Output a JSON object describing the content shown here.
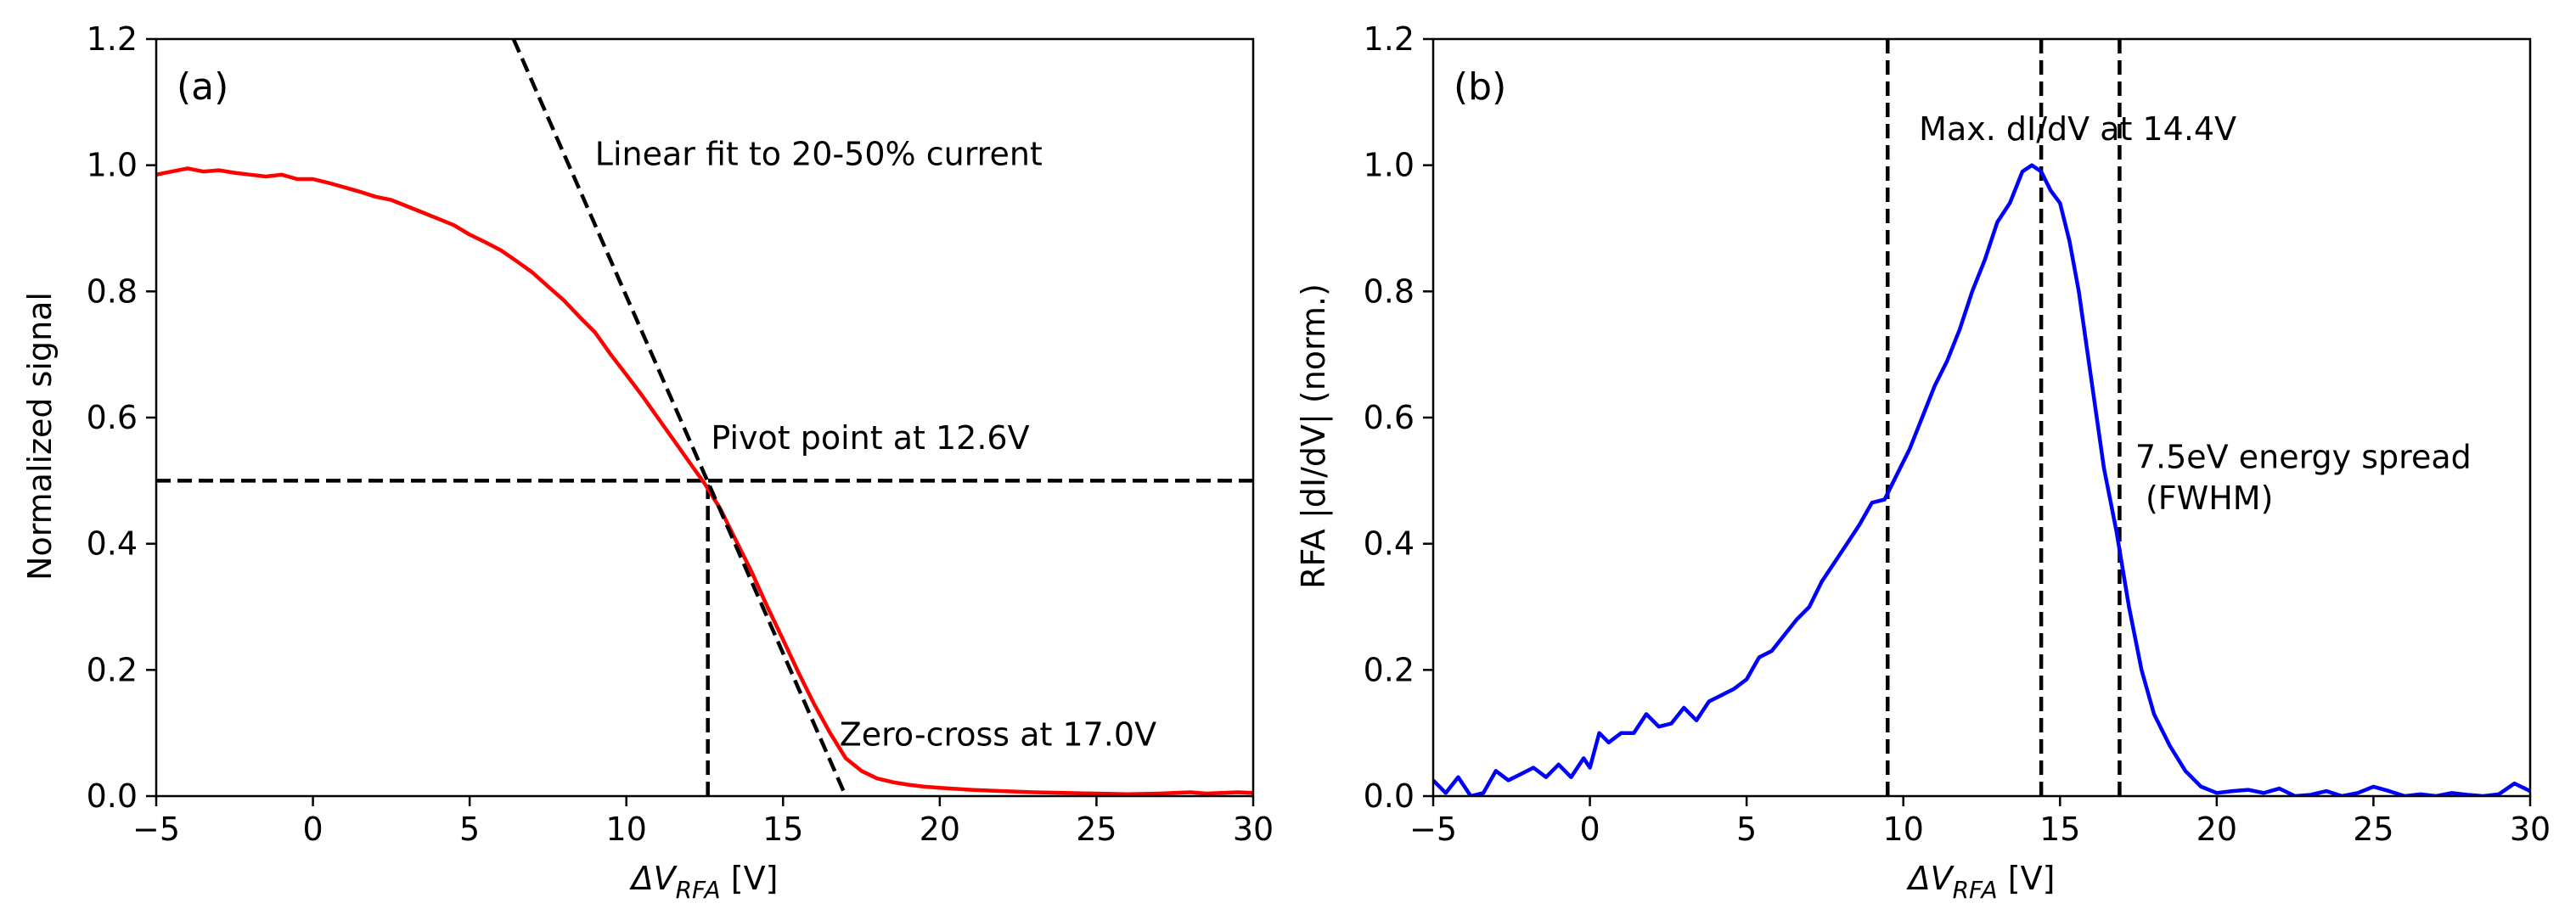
{
  "chart_data": [
    {
      "id": "a",
      "type": "line",
      "panel_label": "(a)",
      "xlabel_main": "ΔV",
      "xlabel_sub": "RFA",
      "xlabel_unit": "[V]",
      "ylabel": "Normalized signal",
      "xlim": [
        -5,
        30
      ],
      "ylim": [
        0,
        1.2
      ],
      "xticks": [
        -5,
        0,
        5,
        10,
        15,
        20,
        25,
        30
      ],
      "xtick_labels": [
        "−5",
        "0",
        "5",
        "10",
        "15",
        "20",
        "25",
        "30"
      ],
      "yticks": [
        0,
        0.2,
        0.4,
        0.6,
        0.8,
        1.0,
        1.2
      ],
      "ytick_labels": [
        "0.0",
        "0.2",
        "0.4",
        "0.6",
        "0.8",
        "1.0",
        "1.2"
      ],
      "series": [
        {
          "name": "Normalized signal",
          "color": "#ff0000",
          "x": [
            -5,
            -4.5,
            -4,
            -3.5,
            -3,
            -2.5,
            -2,
            -1.5,
            -1,
            -0.5,
            0,
            0.5,
            1,
            1.5,
            2,
            2.5,
            3,
            3.5,
            4,
            4.5,
            5,
            5.5,
            6,
            6.5,
            7,
            7.5,
            8,
            8.5,
            9,
            9.5,
            10,
            10.5,
            11,
            11.5,
            12,
            12.5,
            13,
            13.5,
            14,
            14.5,
            15,
            15.5,
            16,
            16.5,
            17,
            17.5,
            18,
            18.5,
            19,
            19.5,
            20,
            21,
            22,
            23,
            24,
            25,
            26,
            27,
            28,
            28.5,
            29,
            29.5,
            30
          ],
          "y": [
            0.985,
            0.99,
            0.995,
            0.99,
            0.992,
            0.988,
            0.985,
            0.982,
            0.985,
            0.978,
            0.978,
            0.972,
            0.965,
            0.958,
            0.95,
            0.945,
            0.935,
            0.925,
            0.915,
            0.905,
            0.89,
            0.878,
            0.865,
            0.848,
            0.83,
            0.808,
            0.786,
            0.76,
            0.735,
            0.7,
            0.668,
            0.635,
            0.6,
            0.565,
            0.53,
            0.495,
            0.455,
            0.405,
            0.355,
            0.3,
            0.248,
            0.195,
            0.145,
            0.1,
            0.06,
            0.04,
            0.028,
            0.022,
            0.018,
            0.015,
            0.013,
            0.01,
            0.008,
            0.006,
            0.005,
            0.004,
            0.003,
            0.004,
            0.006,
            0.004,
            0.005,
            0.006,
            0.005
          ]
        },
        {
          "name": "Linear fit",
          "color": "#000000",
          "style": "dashed",
          "x": [
            6.4,
            17.0
          ],
          "y": [
            1.2,
            0.0
          ]
        }
      ],
      "reference_lines": [
        {
          "orientation": "horizontal",
          "y": 0.5,
          "x_from": -5,
          "x_to": 30
        },
        {
          "orientation": "vertical",
          "x": 12.6,
          "y_from": 0,
          "y_to": 0.5
        }
      ],
      "annotations": [
        {
          "text": "Linear fit to 20-50% current",
          "x": 9.0,
          "y": 1.0
        },
        {
          "text": "Pivot point at 12.6V",
          "x": 12.7,
          "y": 0.55
        },
        {
          "text": "Zero-cross at 17.0V",
          "x": 16.8,
          "y": 0.08
        }
      ]
    },
    {
      "id": "b",
      "type": "line",
      "panel_label": "(b)",
      "xlabel_main": "ΔV",
      "xlabel_sub": "RFA",
      "xlabel_unit": "[V]",
      "ylabel": "RFA |dI/dV| (norm.)",
      "xlim": [
        -5,
        30
      ],
      "ylim": [
        0,
        1.2
      ],
      "xticks": [
        -5,
        0,
        5,
        10,
        15,
        20,
        25,
        30
      ],
      "xtick_labels": [
        "−5",
        "0",
        "5",
        "10",
        "15",
        "20",
        "25",
        "30"
      ],
      "yticks": [
        0,
        0.2,
        0.4,
        0.6,
        0.8,
        1.0,
        1.2
      ],
      "ytick_labels": [
        "0.0",
        "0.2",
        "0.4",
        "0.6",
        "0.8",
        "1.0",
        "1.2"
      ],
      "series": [
        {
          "name": "RFA |dI/dV|",
          "color": "#0000ff",
          "x": [
            -5,
            -4.6,
            -4.2,
            -3.8,
            -3.4,
            -3,
            -2.6,
            -2.2,
            -1.8,
            -1.4,
            -1,
            -0.6,
            -0.2,
            0,
            0.3,
            0.6,
            1,
            1.4,
            1.8,
            2.2,
            2.6,
            3,
            3.4,
            3.8,
            4.2,
            4.6,
            5,
            5.4,
            5.8,
            6.2,
            6.6,
            7,
            7.4,
            7.8,
            8.2,
            8.6,
            9,
            9.4,
            9.8,
            10.2,
            10.6,
            11,
            11.4,
            11.8,
            12.2,
            12.6,
            13,
            13.4,
            13.8,
            14.1,
            14.4,
            14.7,
            15.0,
            15.3,
            15.6,
            16.0,
            16.4,
            16.8,
            17.2,
            17.6,
            18.0,
            18.5,
            19.0,
            19.5,
            20.0,
            20.5,
            21,
            21.5,
            22,
            22.5,
            23,
            23.5,
            24,
            24.5,
            25,
            25.5,
            26,
            26.5,
            27,
            27.5,
            28,
            28.5,
            29,
            29.5,
            30
          ],
          "y": [
            0.025,
            0.005,
            0.03,
            0.0,
            0.005,
            0.04,
            0.025,
            0.035,
            0.045,
            0.03,
            0.05,
            0.03,
            0.06,
            0.045,
            0.1,
            0.085,
            0.1,
            0.1,
            0.13,
            0.11,
            0.115,
            0.14,
            0.12,
            0.15,
            0.16,
            0.17,
            0.185,
            0.22,
            0.23,
            0.255,
            0.28,
            0.3,
            0.34,
            0.37,
            0.4,
            0.43,
            0.465,
            0.47,
            0.51,
            0.55,
            0.6,
            0.65,
            0.69,
            0.74,
            0.8,
            0.85,
            0.91,
            0.94,
            0.99,
            1.0,
            0.99,
            0.96,
            0.94,
            0.88,
            0.8,
            0.66,
            0.52,
            0.42,
            0.3,
            0.2,
            0.13,
            0.08,
            0.04,
            0.015,
            0.005,
            0.008,
            0.01,
            0.005,
            0.012,
            0.0,
            0.002,
            0.008,
            0.0,
            0.005,
            0.015,
            0.008,
            0.0,
            0.003,
            0.0,
            0.005,
            0.002,
            0.0,
            0.003,
            0.02,
            0.008
          ]
        }
      ],
      "reference_lines": [
        {
          "orientation": "vertical",
          "x": 9.5,
          "y_from": 0,
          "y_to": 1.2
        },
        {
          "orientation": "vertical",
          "x": 14.4,
          "y_from": 0,
          "y_to": 1.2
        },
        {
          "orientation": "vertical",
          "x": 16.9,
          "y_from": 0,
          "y_to": 1.2
        }
      ],
      "annotations": [
        {
          "text": "Max. dI/dV at 14.4V",
          "x": 10.5,
          "y": 1.04
        },
        {
          "text": "7.5eV energy spread",
          "x": 17.4,
          "y": 0.52
        },
        {
          "text": " (FWHM)",
          "x": 17.4,
          "y": 0.455
        }
      ]
    }
  ]
}
